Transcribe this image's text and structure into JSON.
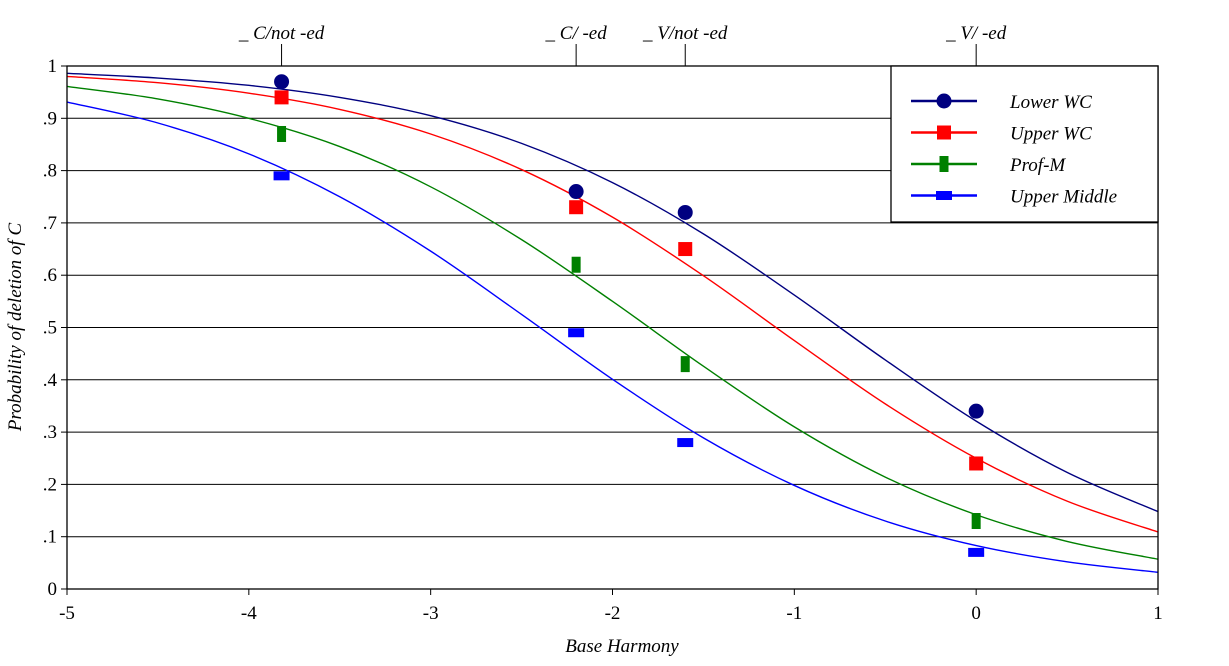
{
  "chart_data": {
    "type": "line",
    "xlabel": "Base Harmony",
    "ylabel": "Probability of deletion of C",
    "xlim": [
      -5,
      1
    ],
    "ylim": [
      0,
      1
    ],
    "x_ticks": [
      -5,
      -4,
      -3,
      -2,
      -1,
      0,
      1
    ],
    "x_tick_labels": [
      "-5",
      "-4",
      "-3",
      "-2",
      "-1",
      "0",
      "1"
    ],
    "y_ticks": [
      0,
      0.1,
      0.2,
      0.3,
      0.4,
      0.5,
      0.6,
      0.7,
      0.8,
      0.9,
      1
    ],
    "y_tick_labels": [
      "0",
      ".1",
      ".2",
      ".3",
      ".4",
      ".5",
      ".6",
      ".7",
      ".8",
      ".9",
      "1"
    ],
    "grid": "horizontal",
    "legend_position": "top-right",
    "top_axis": [
      {
        "x": -3.82,
        "label": "_ C/not -ed"
      },
      {
        "x": -2.2,
        "label": "_ C/ -ed"
      },
      {
        "x": -1.6,
        "label": "_ V/not -ed"
      },
      {
        "x": 0,
        "label": "_ V/ -ed"
      }
    ],
    "curve_x": [
      -5,
      -4.5,
      -4,
      -3.5,
      -3,
      -2.5,
      -2,
      -1.5,
      -1,
      -0.5,
      0,
      0.5,
      1
    ],
    "series": [
      {
        "name": "Lower WC",
        "color": "#000080",
        "marker": "circle",
        "points": {
          "x": [
            -3.82,
            -2.2,
            -1.6,
            0
          ],
          "y": [
            0.97,
            0.76,
            0.72,
            0.34
          ]
        },
        "curve": [
          0.986,
          0.977,
          0.963,
          0.94,
          0.905,
          0.852,
          0.777,
          0.679,
          0.562,
          0.438,
          0.321,
          0.223,
          0.148
        ]
      },
      {
        "name": "Upper WC",
        "color": "#ff0000",
        "marker": "square",
        "points": {
          "x": [
            -3.82,
            -2.2,
            -1.6,
            0
          ],
          "y": [
            0.94,
            0.73,
            0.65,
            0.24
          ]
        },
        "curve": [
          0.98,
          0.968,
          0.948,
          0.917,
          0.87,
          0.802,
          0.711,
          0.599,
          0.475,
          0.354,
          0.25,
          0.168,
          0.109
        ]
      },
      {
        "name": "Prof-M",
        "color": "#008000",
        "marker": "tall-rect",
        "points": {
          "x": [
            -3.82,
            -2.2,
            -1.6,
            0
          ],
          "y": [
            0.87,
            0.62,
            0.43,
            0.13
          ]
        },
        "curve": [
          0.961,
          0.937,
          0.9,
          0.846,
          0.769,
          0.668,
          0.55,
          0.426,
          0.31,
          0.214,
          0.142,
          0.091,
          0.057
        ]
      },
      {
        "name": "Upper Middle",
        "color": "#0000ff",
        "marker": "wide-rect",
        "points": {
          "x": [
            -3.82,
            -2.2,
            -1.6,
            0
          ],
          "y": [
            0.79,
            0.49,
            0.28,
            0.07
          ]
        },
        "curve": [
          0.931,
          0.891,
          0.832,
          0.75,
          0.646,
          0.525,
          0.401,
          0.289,
          0.198,
          0.13,
          0.083,
          0.052,
          0.032
        ]
      }
    ]
  }
}
